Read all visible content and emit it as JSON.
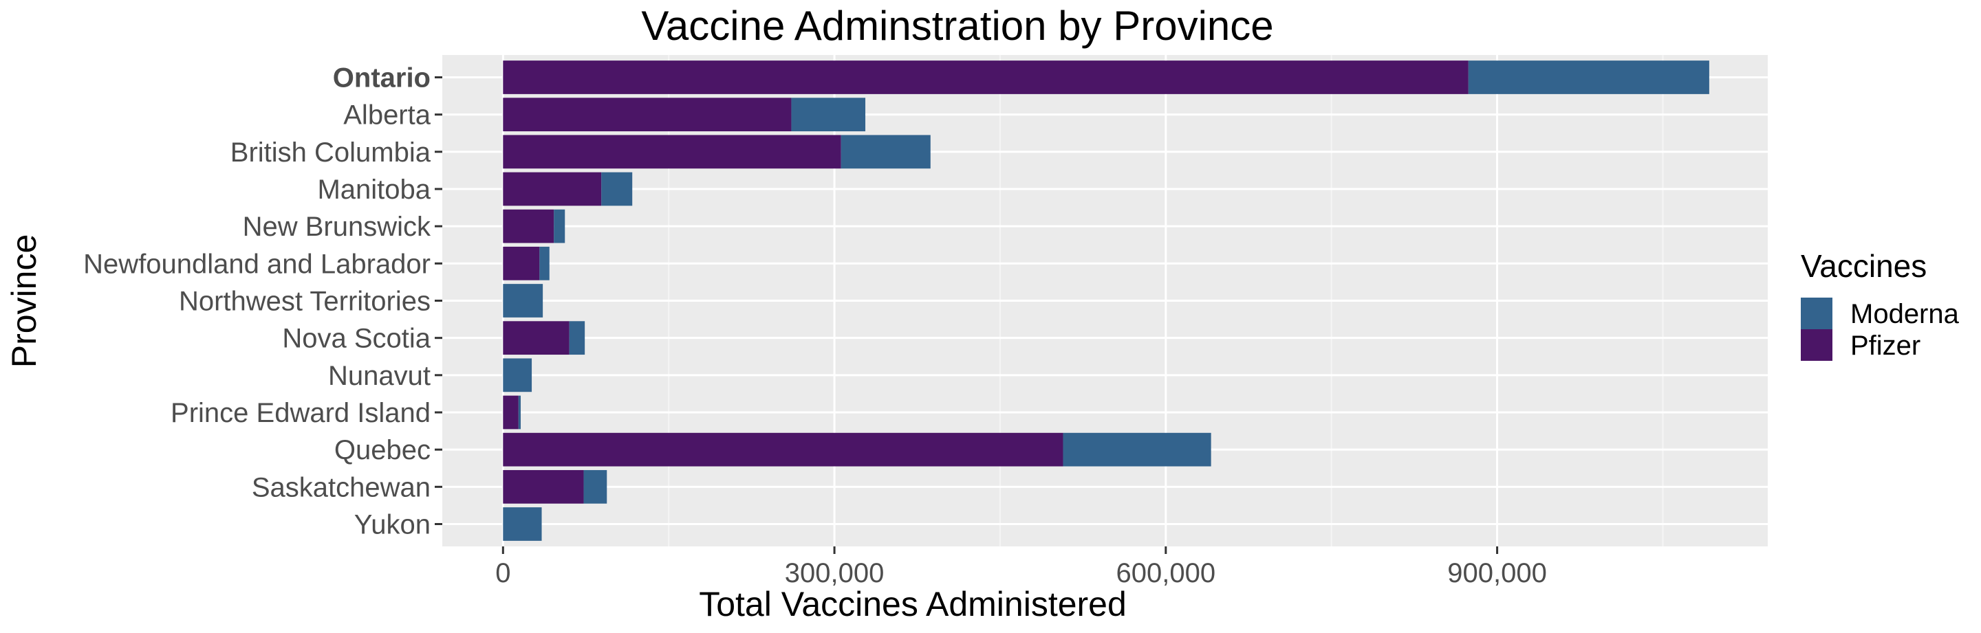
{
  "chart_data": {
    "type": "bar",
    "orientation": "horizontal",
    "stacked": true,
    "title": "Vaccine Adminstration by Province",
    "xlabel": "Total Vaccines Administered",
    "ylabel": "Province",
    "xlim": [
      -55000,
      1145000
    ],
    "xticks": [
      0,
      300000,
      600000,
      900000
    ],
    "xtick_labels": [
      "0",
      "300,000",
      "600,000",
      "900,000"
    ],
    "grid": true,
    "legend": {
      "title": "Vaccines",
      "position": "right"
    },
    "categories": [
      "Ontario",
      "Alberta",
      "British Columbia",
      "Manitoba",
      "New Brunswick",
      "Newfoundland and  Labrador",
      "Northwest  Territories",
      "Nova Scotia",
      "Nunavut",
      "Prince Edward  Island",
      "Quebec",
      "Saskatchewan",
      "Yukon"
    ],
    "bold_categories": [
      "Ontario"
    ],
    "series": [
      {
        "name": "Pfizer",
        "color": "#4b1566",
        "values": [
          874000,
          261000,
          306000,
          89000,
          46000,
          33000,
          0,
          60000,
          0,
          14000,
          507000,
          73000,
          0
        ]
      },
      {
        "name": "Moderna",
        "color": "#33638d",
        "values": [
          218000,
          67000,
          81000,
          28000,
          10000,
          9000,
          36000,
          14000,
          26000,
          2000,
          134000,
          21000,
          35000
        ]
      }
    ],
    "legend_order": [
      "Moderna",
      "Pfizer"
    ]
  },
  "colors": {
    "panel_bg": "#ebebeb",
    "grid_major": "#ffffff",
    "grid_minor": "#f5f5f5"
  }
}
